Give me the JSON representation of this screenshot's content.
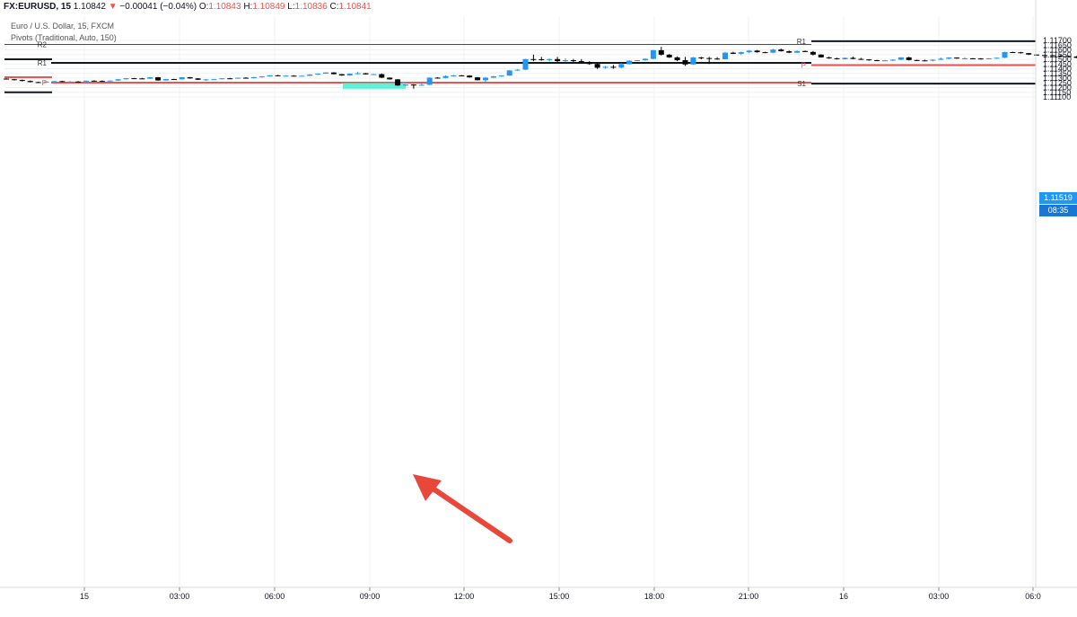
{
  "legend": {
    "symbol": "FX:EURUSD, 15",
    "last": "1.10842",
    "arrow": "▼",
    "change": "−0.00041 (−0.04%)",
    "o_label": "O:",
    "o": "1.10843",
    "h_label": "H:",
    "h": "1.10849",
    "l_label": "L:",
    "l": "1.10836",
    "c_label": "C:",
    "c": "1.10841",
    "title": "Euro / U.S. Dollar, 15, FXCM",
    "indicator": "Pivots (Traditional, Auto, 150)"
  },
  "price_tag": {
    "value": "1.11519",
    "countdown": "08:35"
  },
  "colors": {
    "up": "#2196f3",
    "down": "#000000",
    "pivot_resistance": "#131722",
    "pivot_p": "#ef5350",
    "highlight": "#4af2d1",
    "arrow": "#e8473a",
    "grid": "#eef0f3",
    "axis_text": "#131722",
    "tag_bg": "#2196f3",
    "countdown_bg": "#1976d2"
  },
  "chart_data": {
    "type": "candlestick",
    "title": "Euro / U.S. Dollar, 15, FXCM",
    "ylim": [
      1.1106,
      1.1173
    ],
    "y_ticks": [
      "1.11700",
      "1.11650",
      "1.11600",
      "1.11550",
      "1.11500",
      "1.11450",
      "1.11400",
      "1.11350",
      "1.11300",
      "1.11250",
      "1.11200",
      "1.11150",
      "1.11100"
    ],
    "x_ticks": [
      "15",
      "03:00",
      "06:00",
      "09:00",
      "12:00",
      "15:00",
      "18:00",
      "21:00",
      "16",
      "03:00",
      "06:0"
    ],
    "grid": true,
    "pivot_sets": [
      {
        "period": "first",
        "levels": [
          {
            "label": "R2",
            "value": 1.11657,
            "color": "resistance",
            "thin": true
          },
          {
            "label": "R1",
            "value": 1.11462,
            "color": "resistance"
          },
          {
            "label": "P",
            "value": 1.11252,
            "color": "pivot"
          }
        ]
      },
      {
        "period": "left-edge",
        "levels": [
          {
            "label": "",
            "value": 1.115,
            "color": "resistance"
          },
          {
            "label": "",
            "value": 1.1131,
            "color": "pivot"
          },
          {
            "label": "",
            "value": 1.1115,
            "color": "resistance"
          }
        ]
      },
      {
        "period": "second",
        "levels": [
          {
            "label": "R1",
            "value": 1.11692,
            "color": "resistance"
          },
          {
            "label": "P",
            "value": 1.11438,
            "color": "pivot"
          },
          {
            "label": "S1",
            "value": 1.11242,
            "color": "resistance"
          }
        ]
      }
    ],
    "annotations": [
      {
        "type": "highlight-box",
        "around": "low near 09:00",
        "from": 1.11187,
        "to": 1.11248
      },
      {
        "type": "arrow",
        "pointing_to": "highlight-box"
      }
    ],
    "candles": [
      [
        1.11295,
        1.11299,
        1.11285,
        1.11288
      ],
      [
        1.11288,
        1.11292,
        1.11276,
        1.1128
      ],
      [
        1.1128,
        1.11285,
        1.11265,
        1.1127
      ],
      [
        1.1127,
        1.11275,
        1.11255,
        1.11258
      ],
      [
        1.11258,
        1.11262,
        1.1125,
        1.11254
      ],
      [
        1.11254,
        1.11266,
        1.1125,
        1.11264
      ],
      [
        1.11264,
        1.1127,
        1.1126,
        1.11268
      ],
      [
        1.11268,
        1.11272,
        1.1126,
        1.11262
      ],
      [
        1.11262,
        1.11268,
        1.11258,
        1.11264
      ],
      [
        1.11264,
        1.11269,
        1.11262,
        1.11263
      ],
      [
        1.11263,
        1.11275,
        1.11262,
        1.11273
      ],
      [
        1.11273,
        1.11278,
        1.11268,
        1.1127
      ],
      [
        1.1127,
        1.11276,
        1.11266,
        1.11268
      ],
      [
        1.11268,
        1.11276,
        1.11266,
        1.11274
      ],
      [
        1.11274,
        1.1129,
        1.11272,
        1.11288
      ],
      [
        1.11288,
        1.11301,
        1.11285,
        1.11299
      ],
      [
        1.11299,
        1.11302,
        1.11294,
        1.11297
      ],
      [
        1.11297,
        1.11302,
        1.11293,
        1.11294
      ],
      [
        1.11294,
        1.11312,
        1.11292,
        1.11309
      ],
      [
        1.11309,
        1.11312,
        1.11272,
        1.11276
      ],
      [
        1.11276,
        1.11292,
        1.11274,
        1.1129
      ],
      [
        1.1129,
        1.11293,
        1.11285,
        1.11287
      ],
      [
        1.11287,
        1.11311,
        1.11285,
        1.11309
      ],
      [
        1.11309,
        1.11312,
        1.11294,
        1.11297
      ],
      [
        1.11297,
        1.113,
        1.1128,
        1.11283
      ],
      [
        1.11283,
        1.1129,
        1.11272,
        1.11287
      ],
      [
        1.11287,
        1.11292,
        1.11283,
        1.11289
      ],
      [
        1.11289,
        1.113,
        1.11287,
        1.11298
      ],
      [
        1.11298,
        1.11303,
        1.11293,
        1.11296
      ],
      [
        1.11296,
        1.11306,
        1.11293,
        1.11304
      ],
      [
        1.11304,
        1.1131,
        1.11296,
        1.113
      ],
      [
        1.113,
        1.11313,
        1.11298,
        1.11311
      ],
      [
        1.11311,
        1.1132,
        1.11305,
        1.11318
      ],
      [
        1.11318,
        1.11332,
        1.11316,
        1.1133
      ],
      [
        1.1133,
        1.11334,
        1.1132,
        1.11323
      ],
      [
        1.11323,
        1.1133,
        1.11318,
        1.11326
      ],
      [
        1.11326,
        1.1133,
        1.11318,
        1.1132
      ],
      [
        1.1132,
        1.11328,
        1.11318,
        1.11325
      ],
      [
        1.11325,
        1.11342,
        1.11322,
        1.11339
      ],
      [
        1.11339,
        1.11351,
        1.11334,
        1.11348
      ],
      [
        1.11348,
        1.11362,
        1.11345,
        1.1136
      ],
      [
        1.1136,
        1.11363,
        1.1134,
        1.11342
      ],
      [
        1.11342,
        1.11344,
        1.11325,
        1.11328
      ],
      [
        1.11328,
        1.1135,
        1.11326,
        1.11348
      ],
      [
        1.11348,
        1.11368,
        1.1134,
        1.11352
      ],
      [
        1.11352,
        1.11355,
        1.11338,
        1.1134
      ],
      [
        1.1134,
        1.11345,
        1.11335,
        1.11342
      ],
      [
        1.11342,
        1.1135,
        1.113,
        1.11305
      ],
      [
        1.11305,
        1.11308,
        1.11284,
        1.11287
      ],
      [
        1.11287,
        1.1129,
        1.11218,
        1.11222
      ],
      [
        1.11222,
        1.11235,
        1.11217,
        1.11232
      ],
      [
        1.11232,
        1.11236,
        1.11188,
        1.11222
      ],
      [
        1.11222,
        1.11258,
        1.1122,
        1.11229
      ],
      [
        1.11229,
        1.11308,
        1.11227,
        1.11305
      ],
      [
        1.11305,
        1.1131,
        1.11295,
        1.11302
      ],
      [
        1.11302,
        1.11328,
        1.11299,
        1.11322
      ],
      [
        1.11322,
        1.11335,
        1.11316,
        1.11329
      ],
      [
        1.11329,
        1.11333,
        1.11325,
        1.11327
      ],
      [
        1.11327,
        1.11331,
        1.11305,
        1.11308
      ],
      [
        1.11308,
        1.11311,
        1.11275,
        1.11278
      ],
      [
        1.11278,
        1.11312,
        1.1125,
        1.11305
      ],
      [
        1.11305,
        1.11323,
        1.11302,
        1.1132
      ],
      [
        1.1132,
        1.1133,
        1.11315,
        1.11327
      ],
      [
        1.11327,
        1.11385,
        1.11325,
        1.11382
      ],
      [
        1.11382,
        1.11395,
        1.11378,
        1.1139
      ],
      [
        1.1139,
        1.11505,
        1.11385,
        1.11502
      ],
      [
        1.11502,
        1.11549,
        1.1148,
        1.115
      ],
      [
        1.115,
        1.11525,
        1.11485,
        1.11491
      ],
      [
        1.11491,
        1.11508,
        1.11478,
        1.11502
      ],
      [
        1.11502,
        1.11525,
        1.1147,
        1.1148
      ],
      [
        1.1148,
        1.1151,
        1.1147,
        1.1149
      ],
      [
        1.1149,
        1.11503,
        1.1147,
        1.1148
      ],
      [
        1.1148,
        1.11502,
        1.11465,
        1.11468
      ],
      [
        1.11468,
        1.1148,
        1.11442,
        1.1145
      ],
      [
        1.1145,
        1.1146,
        1.11398,
        1.1141
      ],
      [
        1.1141,
        1.11428,
        1.114,
        1.1142
      ],
      [
        1.1142,
        1.1144,
        1.114,
        1.11412
      ],
      [
        1.11412,
        1.1146,
        1.11405,
        1.11448
      ],
      [
        1.11448,
        1.1149,
        1.11445,
        1.11485
      ],
      [
        1.11485,
        1.11492,
        1.11479,
        1.1149
      ],
      [
        1.1149,
        1.1151,
        1.11485,
        1.11505
      ],
      [
        1.11505,
        1.116,
        1.115,
        1.11596
      ],
      [
        1.11596,
        1.11632,
        1.1154,
        1.11549
      ],
      [
        1.11549,
        1.11555,
        1.11515,
        1.1152
      ],
      [
        1.1152,
        1.1153,
        1.1148,
        1.1149
      ],
      [
        1.1149,
        1.11525,
        1.1143,
        1.11445
      ],
      [
        1.11445,
        1.11525,
        1.1144,
        1.1152
      ],
      [
        1.1152,
        1.11525,
        1.115,
        1.11513
      ],
      [
        1.11513,
        1.11525,
        1.1145,
        1.11507
      ],
      [
        1.11507,
        1.11523,
        1.11495,
        1.115
      ],
      [
        1.115,
        1.11578,
        1.11498,
        1.1157
      ],
      [
        1.1157,
        1.1158,
        1.11555,
        1.11558
      ],
      [
        1.11558,
        1.11582,
        1.11545,
        1.11575
      ],
      [
        1.11575,
        1.11598,
        1.11565,
        1.11592
      ],
      [
        1.11592,
        1.11598,
        1.1157,
        1.11575
      ],
      [
        1.11575,
        1.1158,
        1.11565,
        1.1157
      ],
      [
        1.1157,
        1.1161,
        1.11565,
        1.11603
      ],
      [
        1.11603,
        1.11612,
        1.11582,
        1.11585
      ],
      [
        1.11585,
        1.11593,
        1.11565,
        1.1157
      ],
      [
        1.1157,
        1.11593,
        1.11565,
        1.11588
      ],
      [
        1.11588,
        1.11592,
        1.11575,
        1.11578
      ],
      [
        1.11578,
        1.11588,
        1.1154,
        1.1155
      ],
      [
        1.1155,
        1.11553,
        1.11518,
        1.1152
      ],
      [
        1.1152,
        1.11527,
        1.11505,
        1.1151
      ],
      [
        1.1151,
        1.11517,
        1.11497,
        1.115
      ],
      [
        1.115,
        1.1152,
        1.11498,
        1.11515
      ],
      [
        1.11515,
        1.11528,
        1.115,
        1.11504
      ],
      [
        1.11504,
        1.11515,
        1.11493,
        1.11498
      ],
      [
        1.11498,
        1.11502,
        1.11485,
        1.1149
      ],
      [
        1.1149,
        1.11495,
        1.1148,
        1.11482
      ],
      [
        1.11482,
        1.11492,
        1.11478,
        1.11489
      ],
      [
        1.11489,
        1.115,
        1.11482,
        1.11495
      ],
      [
        1.11495,
        1.11523,
        1.1149,
        1.1152
      ],
      [
        1.1152,
        1.11525,
        1.11487,
        1.11492
      ],
      [
        1.11492,
        1.11495,
        1.11482,
        1.11488
      ],
      [
        1.11488,
        1.11495,
        1.1148,
        1.11485
      ],
      [
        1.11485,
        1.115,
        1.11478,
        1.11495
      ],
      [
        1.11495,
        1.1152,
        1.1149,
        1.11506
      ],
      [
        1.11506,
        1.11523,
        1.115,
        1.11518
      ],
      [
        1.11518,
        1.1152,
        1.11505,
        1.11508
      ],
      [
        1.11508,
        1.11522,
        1.11503,
        1.1151
      ],
      [
        1.1151,
        1.11513,
        1.11502,
        1.11508
      ],
      [
        1.11508,
        1.11513,
        1.11498,
        1.11503
      ],
      [
        1.11503,
        1.11512,
        1.115,
        1.1151
      ],
      [
        1.1151,
        1.11519,
        1.11505,
        1.11516
      ],
      [
        1.11516,
        1.1158,
        1.11512,
        1.11576
      ],
      [
        1.11576,
        1.1158,
        1.1157,
        1.11574
      ],
      [
        1.11574,
        1.11578,
        1.1156,
        1.11565
      ],
      [
        1.11565,
        1.11567,
        1.11545,
        1.1155
      ],
      [
        1.1155,
        1.11552,
        1.1154,
        1.11545
      ],
      [
        1.11545,
        1.1155,
        1.11538,
        1.11543
      ],
      [
        1.11543,
        1.11547,
        1.11537,
        1.1154
      ],
      [
        1.1154,
        1.11545,
        1.1153,
        1.11535
      ],
      [
        1.11535,
        1.1154,
        1.11526,
        1.1153
      ],
      [
        1.1153,
        1.11535,
        1.11512,
        1.11515
      ],
      [
        1.11515,
        1.1152,
        1.11506,
        1.11515
      ],
      [
        1.11515,
        1.11532,
        1.11513,
        1.1153
      ],
      [
        1.1153,
        1.11545,
        1.11527,
        1.11542
      ],
      [
        1.11542,
        1.11548,
        1.11535,
        1.11537
      ],
      [
        1.11537,
        1.11542,
        1.11525,
        1.1153
      ],
      [
        1.1153,
        1.11532,
        1.11524,
        1.11526
      ],
      [
        1.11526,
        1.1153,
        1.11521,
        1.11524
      ],
      [
        1.11524,
        1.11527,
        1.11517,
        1.1152
      ],
      [
        1.1152,
        1.11531,
        1.1151,
        1.11512
      ],
      [
        1.11512,
        1.11526,
        1.11506,
        1.1152
      ]
    ]
  }
}
